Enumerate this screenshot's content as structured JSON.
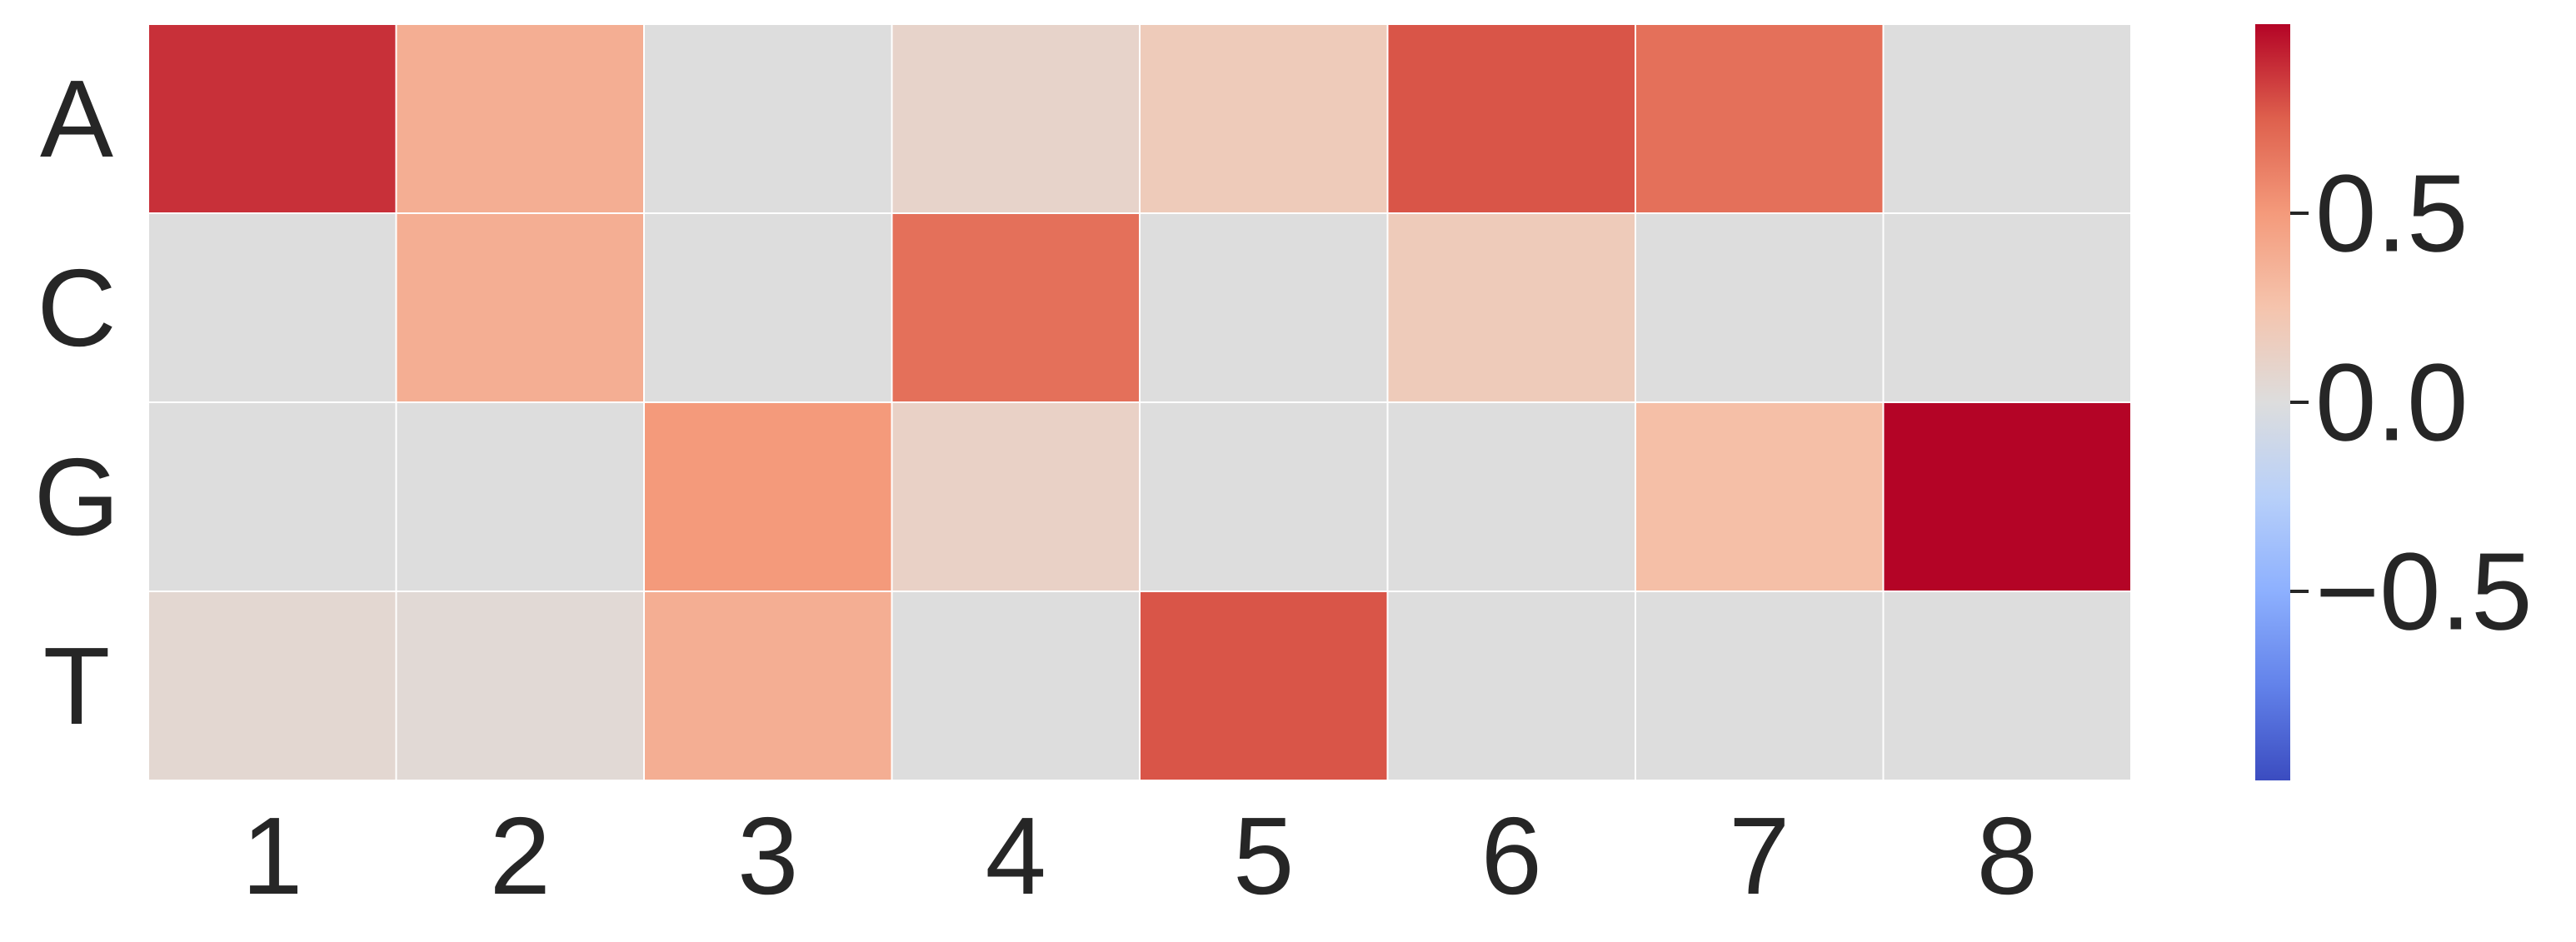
{
  "chart_data": {
    "type": "heatmap",
    "title": "",
    "xlabel": "",
    "ylabel": "",
    "x_categories": [
      "1",
      "2",
      "3",
      "4",
      "5",
      "6",
      "7",
      "8"
    ],
    "y_categories": [
      "A",
      "C",
      "G",
      "T"
    ],
    "values": [
      [
        0.88,
        0.38,
        0.0,
        0.1,
        0.18,
        0.78,
        0.68,
        0.0
      ],
      [
        0.0,
        0.38,
        0.0,
        0.68,
        0.0,
        0.18,
        0.0,
        0.0
      ],
      [
        0.0,
        0.0,
        0.5,
        0.12,
        0.0,
        0.0,
        0.28,
        1.0
      ],
      [
        0.06,
        0.04,
        0.38,
        0.0,
        0.78,
        0.0,
        0.0,
        0.0
      ]
    ],
    "vmin": -1.0,
    "vmax": 1.0,
    "colormap": "coolwarm",
    "cell_border_color": "#ffffff",
    "colorbar": {
      "ticks": [
        0.5,
        0.0,
        -0.5
      ],
      "tick_labels": [
        "0.5",
        "0.0",
        "−0.5"
      ],
      "placement": "right"
    }
  }
}
